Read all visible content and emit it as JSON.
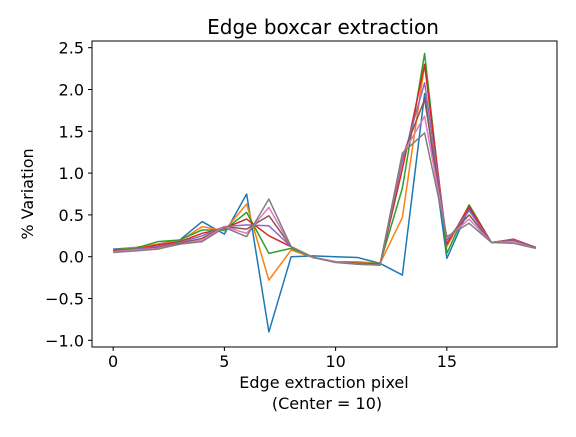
{
  "chart_data": {
    "type": "line",
    "title": "Edge boxcar extraction",
    "xlabel": "Edge extraction pixel",
    "xlabel_line2": "(Center = 10)",
    "ylabel": "% Variation",
    "xlim": [
      -0.95,
      19.95
    ],
    "ylim": [
      -1.08,
      2.58
    ],
    "xticks": [
      0,
      5,
      10,
      15
    ],
    "xtick_labels": [
      "0",
      "5",
      "10",
      "15"
    ],
    "yticks": [
      -1.0,
      -0.5,
      0.0,
      0.5,
      1.0,
      1.5,
      2.0,
      2.5
    ],
    "ytick_labels": [
      "−1.0",
      "−0.5",
      "0.0",
      "0.5",
      "1.0",
      "1.5",
      "2.0",
      "2.5"
    ],
    "grid": false,
    "x": [
      0,
      1,
      2,
      3,
      4,
      5,
      6,
      7,
      8,
      9,
      10,
      11,
      12,
      13,
      14,
      15,
      16,
      17,
      18,
      19
    ],
    "series": [
      {
        "color": "#1f77b4",
        "values": [
          0.09,
          0.11,
          0.15,
          0.2,
          0.42,
          0.27,
          0.75,
          -0.9,
          0.0,
          0.01,
          0.0,
          -0.01,
          -0.08,
          -0.22,
          1.95,
          -0.02,
          0.58,
          0.17,
          0.2,
          0.11
        ]
      },
      {
        "color": "#ff7f0e",
        "values": [
          0.08,
          0.11,
          0.15,
          0.19,
          0.36,
          0.31,
          0.63,
          -0.28,
          0.08,
          -0.01,
          -0.06,
          -0.06,
          -0.08,
          0.47,
          2.3,
          0.12,
          0.62,
          0.17,
          0.2,
          0.11
        ]
      },
      {
        "color": "#2ca02c",
        "values": [
          0.08,
          0.1,
          0.18,
          0.2,
          0.32,
          0.32,
          0.53,
          0.04,
          0.1,
          -0.01,
          -0.06,
          -0.08,
          -0.08,
          0.82,
          2.43,
          0.04,
          0.62,
          0.17,
          0.2,
          0.11
        ]
      },
      {
        "color": "#d62728",
        "values": [
          0.07,
          0.09,
          0.14,
          0.18,
          0.28,
          0.34,
          0.45,
          0.25,
          0.12,
          -0.01,
          -0.06,
          -0.08,
          -0.09,
          1.05,
          2.3,
          0.15,
          0.6,
          0.17,
          0.21,
          0.11
        ]
      },
      {
        "color": "#9467bd",
        "values": [
          0.06,
          0.09,
          0.12,
          0.17,
          0.25,
          0.36,
          0.38,
          0.37,
          0.12,
          -0.01,
          -0.06,
          -0.08,
          -0.09,
          1.15,
          2.08,
          0.19,
          0.55,
          0.17,
          0.2,
          0.11
        ]
      },
      {
        "color": "#8c564b",
        "values": [
          0.06,
          0.08,
          0.11,
          0.16,
          0.22,
          0.36,
          0.33,
          0.49,
          0.12,
          -0.01,
          -0.06,
          -0.08,
          -0.09,
          1.2,
          1.88,
          0.21,
          0.5,
          0.17,
          0.19,
          0.11
        ]
      },
      {
        "color": "#e377c2",
        "values": [
          0.06,
          0.08,
          0.1,
          0.15,
          0.2,
          0.36,
          0.28,
          0.59,
          0.12,
          -0.01,
          -0.06,
          -0.09,
          -0.1,
          1.22,
          1.68,
          0.22,
          0.45,
          0.17,
          0.18,
          0.1
        ]
      },
      {
        "color": "#7f7f7f",
        "values": [
          0.05,
          0.07,
          0.09,
          0.15,
          0.18,
          0.35,
          0.24,
          0.69,
          0.12,
          -0.01,
          -0.07,
          -0.09,
          -0.1,
          1.24,
          1.48,
          0.24,
          0.4,
          0.17,
          0.16,
          0.1
        ]
      }
    ]
  }
}
